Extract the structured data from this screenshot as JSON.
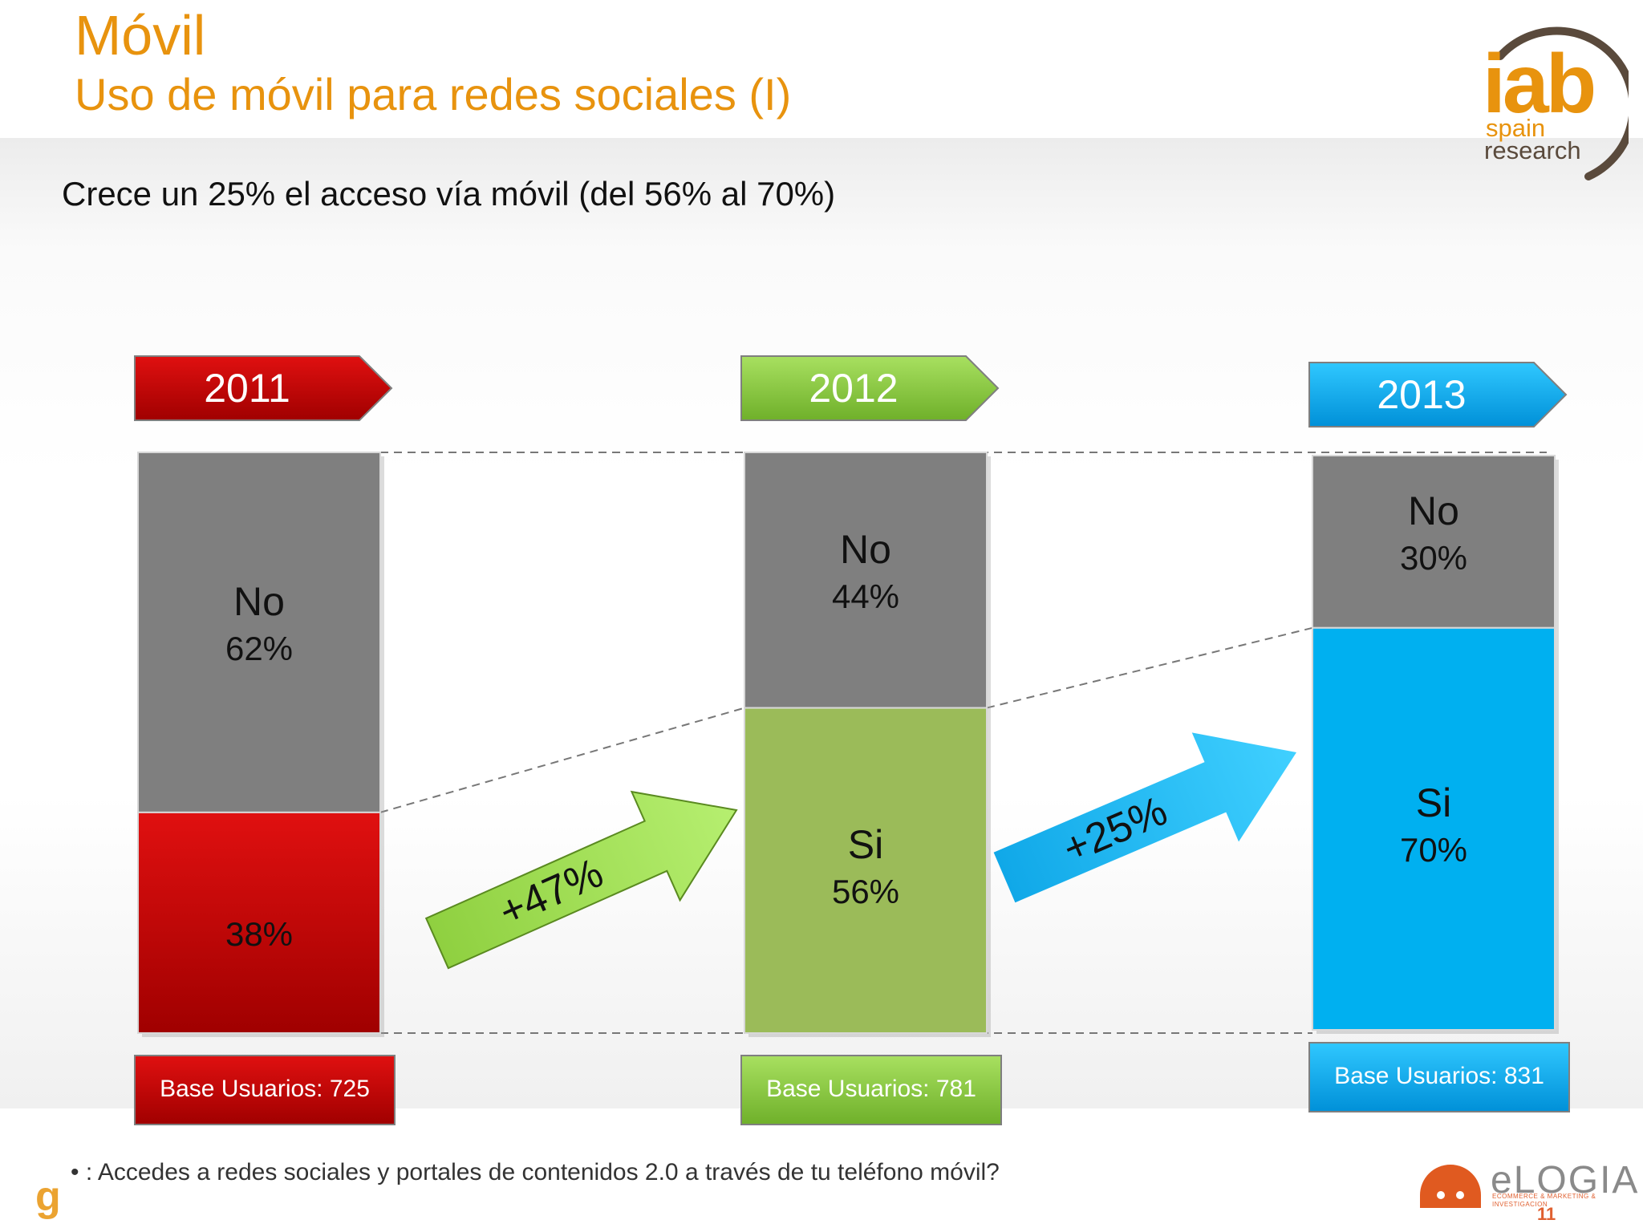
{
  "header": {
    "title": "Móvil",
    "subtitle": "Uso de móvil para redes sociales (I)",
    "headline": "Crece un 25% el acceso vía móvil (del 56% al 70%)"
  },
  "logos": {
    "iab": "iab",
    "iab_spain": "spain",
    "iab_research": "research",
    "elogia": "eLOGIA",
    "elogia_tagline": "ECOMMERCE & MARKETING & INVESTIGACION",
    "generation": "g"
  },
  "footnote": "•   : Accedes a redes sociales y portales de contenidos 2.0 a través de tu teléfono móvil?",
  "page_number": "11",
  "colors": {
    "red": "#c00000",
    "green": "#9bbb59",
    "blue": "#00b0f0",
    "gray": "#7f7f7f",
    "orange": "#e8930e"
  },
  "chart_data": {
    "type": "bar",
    "stacked": true,
    "categories": [
      "2011",
      "2012",
      "2013"
    ],
    "series": [
      {
        "name": "Si",
        "values": [
          38,
          56,
          70
        ]
      },
      {
        "name": "No",
        "values": [
          62,
          44,
          30
        ]
      }
    ],
    "segment_labels": [
      {
        "si_word": "",
        "si_pct": "38%",
        "no_word": "No",
        "no_pct": "62%"
      },
      {
        "si_word": "Si",
        "si_pct": "56%",
        "no_word": "No",
        "no_pct": "44%"
      },
      {
        "si_word": "Si",
        "si_pct": "70%",
        "no_word": "No",
        "no_pct": "30%"
      }
    ],
    "bases": [
      "Base Usuarios: 725",
      "Base Usuarios: 781",
      "Base Usuarios: 831"
    ],
    "growth": [
      "+47%",
      "+25%"
    ],
    "ylim": [
      0,
      100
    ],
    "grid": false,
    "legend": "none"
  }
}
